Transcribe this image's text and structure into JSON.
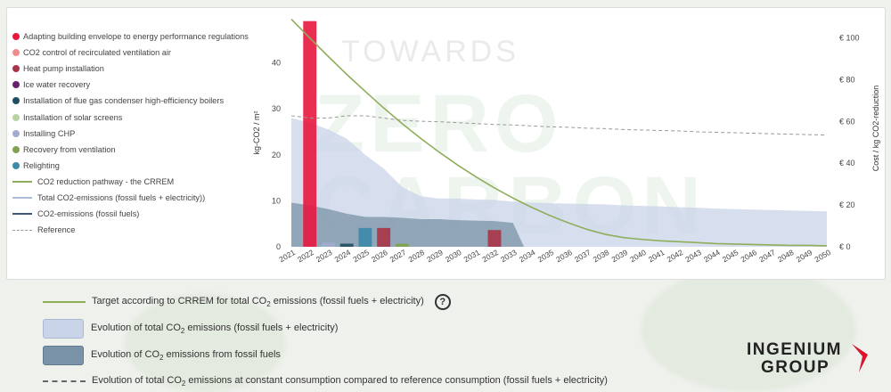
{
  "legend_items": [
    {
      "label": "Adapting building envelope to energy performance regulations",
      "color": "#e8173f",
      "kind": "dot"
    },
    {
      "label": "CO2 control of recirculated ventilation air",
      "color": "#f08c8c",
      "kind": "dot"
    },
    {
      "label": "Heat pump installation",
      "color": "#a83447",
      "kind": "dot"
    },
    {
      "label": "Ice water recovery",
      "color": "#6b1f6e",
      "kind": "dot"
    },
    {
      "label": "Installation of flue gas condenser high-efficiency boilers",
      "color": "#1e4f61",
      "kind": "dot"
    },
    {
      "label": "Installation of solar screens",
      "color": "#b8d3a2",
      "kind": "dot"
    },
    {
      "label": "Installing CHP",
      "color": "#a3acd0",
      "kind": "dot"
    },
    {
      "label": "Recovery from ventilation",
      "color": "#7fa34e",
      "kind": "dot"
    },
    {
      "label": "Relighting",
      "color": "#3d8aa8",
      "kind": "dot"
    },
    {
      "label": "CO2 reduction pathway - the CRREM",
      "color": "#8fae5a",
      "kind": "line"
    },
    {
      "label": "Total CO2-emissions (fossil fuels + electricity))",
      "color": "#a9bcd8",
      "kind": "line"
    },
    {
      "label": "CO2-emissions (fossil fuels)",
      "color": "#3e5a78",
      "kind": "line"
    },
    {
      "label": "Reference",
      "color": "#9a9a9a",
      "kind": "dashed"
    }
  ],
  "watermark": {
    "line1": "TOWARDS",
    "line2": "ZERO",
    "line3": "CARBON"
  },
  "chart_data": {
    "type": "bar",
    "x": [
      2021,
      2022,
      2023,
      2024,
      2025,
      2026,
      2027,
      2028,
      2029,
      2030,
      2031,
      2032,
      2033,
      2034,
      2035,
      2036,
      2037,
      2038,
      2039,
      2040,
      2041,
      2042,
      2043,
      2044,
      2045,
      2046,
      2047,
      2048,
      2049,
      2050
    ],
    "y_left": {
      "label": "kg-CO2 / m²",
      "ticks": [
        0,
        10,
        20,
        30,
        40
      ],
      "lim": [
        0,
        50
      ]
    },
    "y_right": {
      "label": "Cost / kg CO2-reduction",
      "ticks": [
        "€ 0",
        "€ 20",
        "€ 40",
        "€ 60",
        "€ 80",
        "€ 100"
      ],
      "lim": [
        0,
        110
      ]
    },
    "crrem_pathway": [
      49.5,
      45.4,
      41.4,
      37.5,
      33.8,
      30.2,
      26.8,
      23.6,
      20.6,
      17.8,
      15.2,
      12.8,
      10.6,
      8.6,
      6.8,
      5.2,
      3.8,
      2.7,
      2.0,
      1.6,
      1.3,
      1.1,
      0.9,
      0.7,
      0.6,
      0.5,
      0.4,
      0.3,
      0.3,
      0.2
    ],
    "total_emissions": [
      28.0,
      27.0,
      25.5,
      23.5,
      20.0,
      17.0,
      13.0,
      11.0,
      10.5,
      10.5,
      10.3,
      10.2,
      9.8,
      9.6,
      9.5,
      9.4,
      9.3,
      9.2,
      9.0,
      8.9,
      8.8,
      8.6,
      8.5,
      8.3,
      8.2,
      8.1,
      8.0,
      7.9,
      7.8,
      7.7
    ],
    "fossil_emissions": [
      9.6,
      9.0,
      8.2,
      7.2,
      6.5,
      6.5,
      6.3,
      6.0,
      6.0,
      5.8,
      5.7,
      5.6,
      5.2,
      0,
      0,
      0,
      0,
      0,
      0,
      0,
      0,
      0,
      0,
      0,
      0,
      0,
      0,
      0,
      0,
      0
    ],
    "reference": [
      28.5,
      28.0,
      28.0,
      28.5,
      28.5,
      28.0,
      27.5,
      27.3,
      27.2,
      27.0,
      26.8,
      26.6,
      26.5,
      26.3,
      26.1,
      26.0,
      25.8,
      25.7,
      25.5,
      25.4,
      25.3,
      25.2,
      25.0,
      24.9,
      24.8,
      24.7,
      24.6,
      24.5,
      24.4,
      24.3
    ],
    "bars": [
      {
        "year": 2022,
        "cost": 108,
        "color": "#e8173f",
        "measure": "Adapting building envelope to energy performance regulations"
      },
      {
        "year": 2023,
        "cost": 2,
        "color": "#a3acd0",
        "measure": "Installing CHP"
      },
      {
        "year": 2024,
        "cost": 1.5,
        "color": "#1e4f61",
        "measure": "Installation of flue gas condenser high-efficiency boilers"
      },
      {
        "year": 2025,
        "cost": 9,
        "color": "#3d8aa8",
        "measure": "Relighting"
      },
      {
        "year": 2026,
        "cost": 9,
        "color": "#a83447",
        "measure": "Heat pump installation"
      },
      {
        "year": 2027,
        "cost": 1.5,
        "color": "#7fa34e",
        "measure": "Recovery from ventilation"
      },
      {
        "year": 2032,
        "cost": 8,
        "color": "#a83447",
        "measure": "Heat pump installation"
      }
    ]
  },
  "bottom_legend": {
    "target": {
      "text": "Target according to CRREM for total CO",
      "sub": "2",
      "tail": " emissions (fossil fuels + electricity)",
      "color": "#8fae5a"
    },
    "total": {
      "text": "Evolution of total CO",
      "sub": "2",
      "tail": " emissions (fossil fuels + electricity)",
      "color": "#c9d4e8"
    },
    "fossil": {
      "text": "Evolution of CO",
      "sub": "2",
      "tail": " emissions from fossil fuels",
      "color": "#7b93a8"
    },
    "reference": {
      "text": "Evolution of total CO",
      "sub": "2",
      "tail": " emissions at constant consumption compared to reference consumption (fossil fuels + electricity)",
      "color": "#666666"
    },
    "help": "?"
  },
  "logo": {
    "line1": "INGENIUM",
    "line2": "GROUP",
    "accent": "#d8152c"
  }
}
